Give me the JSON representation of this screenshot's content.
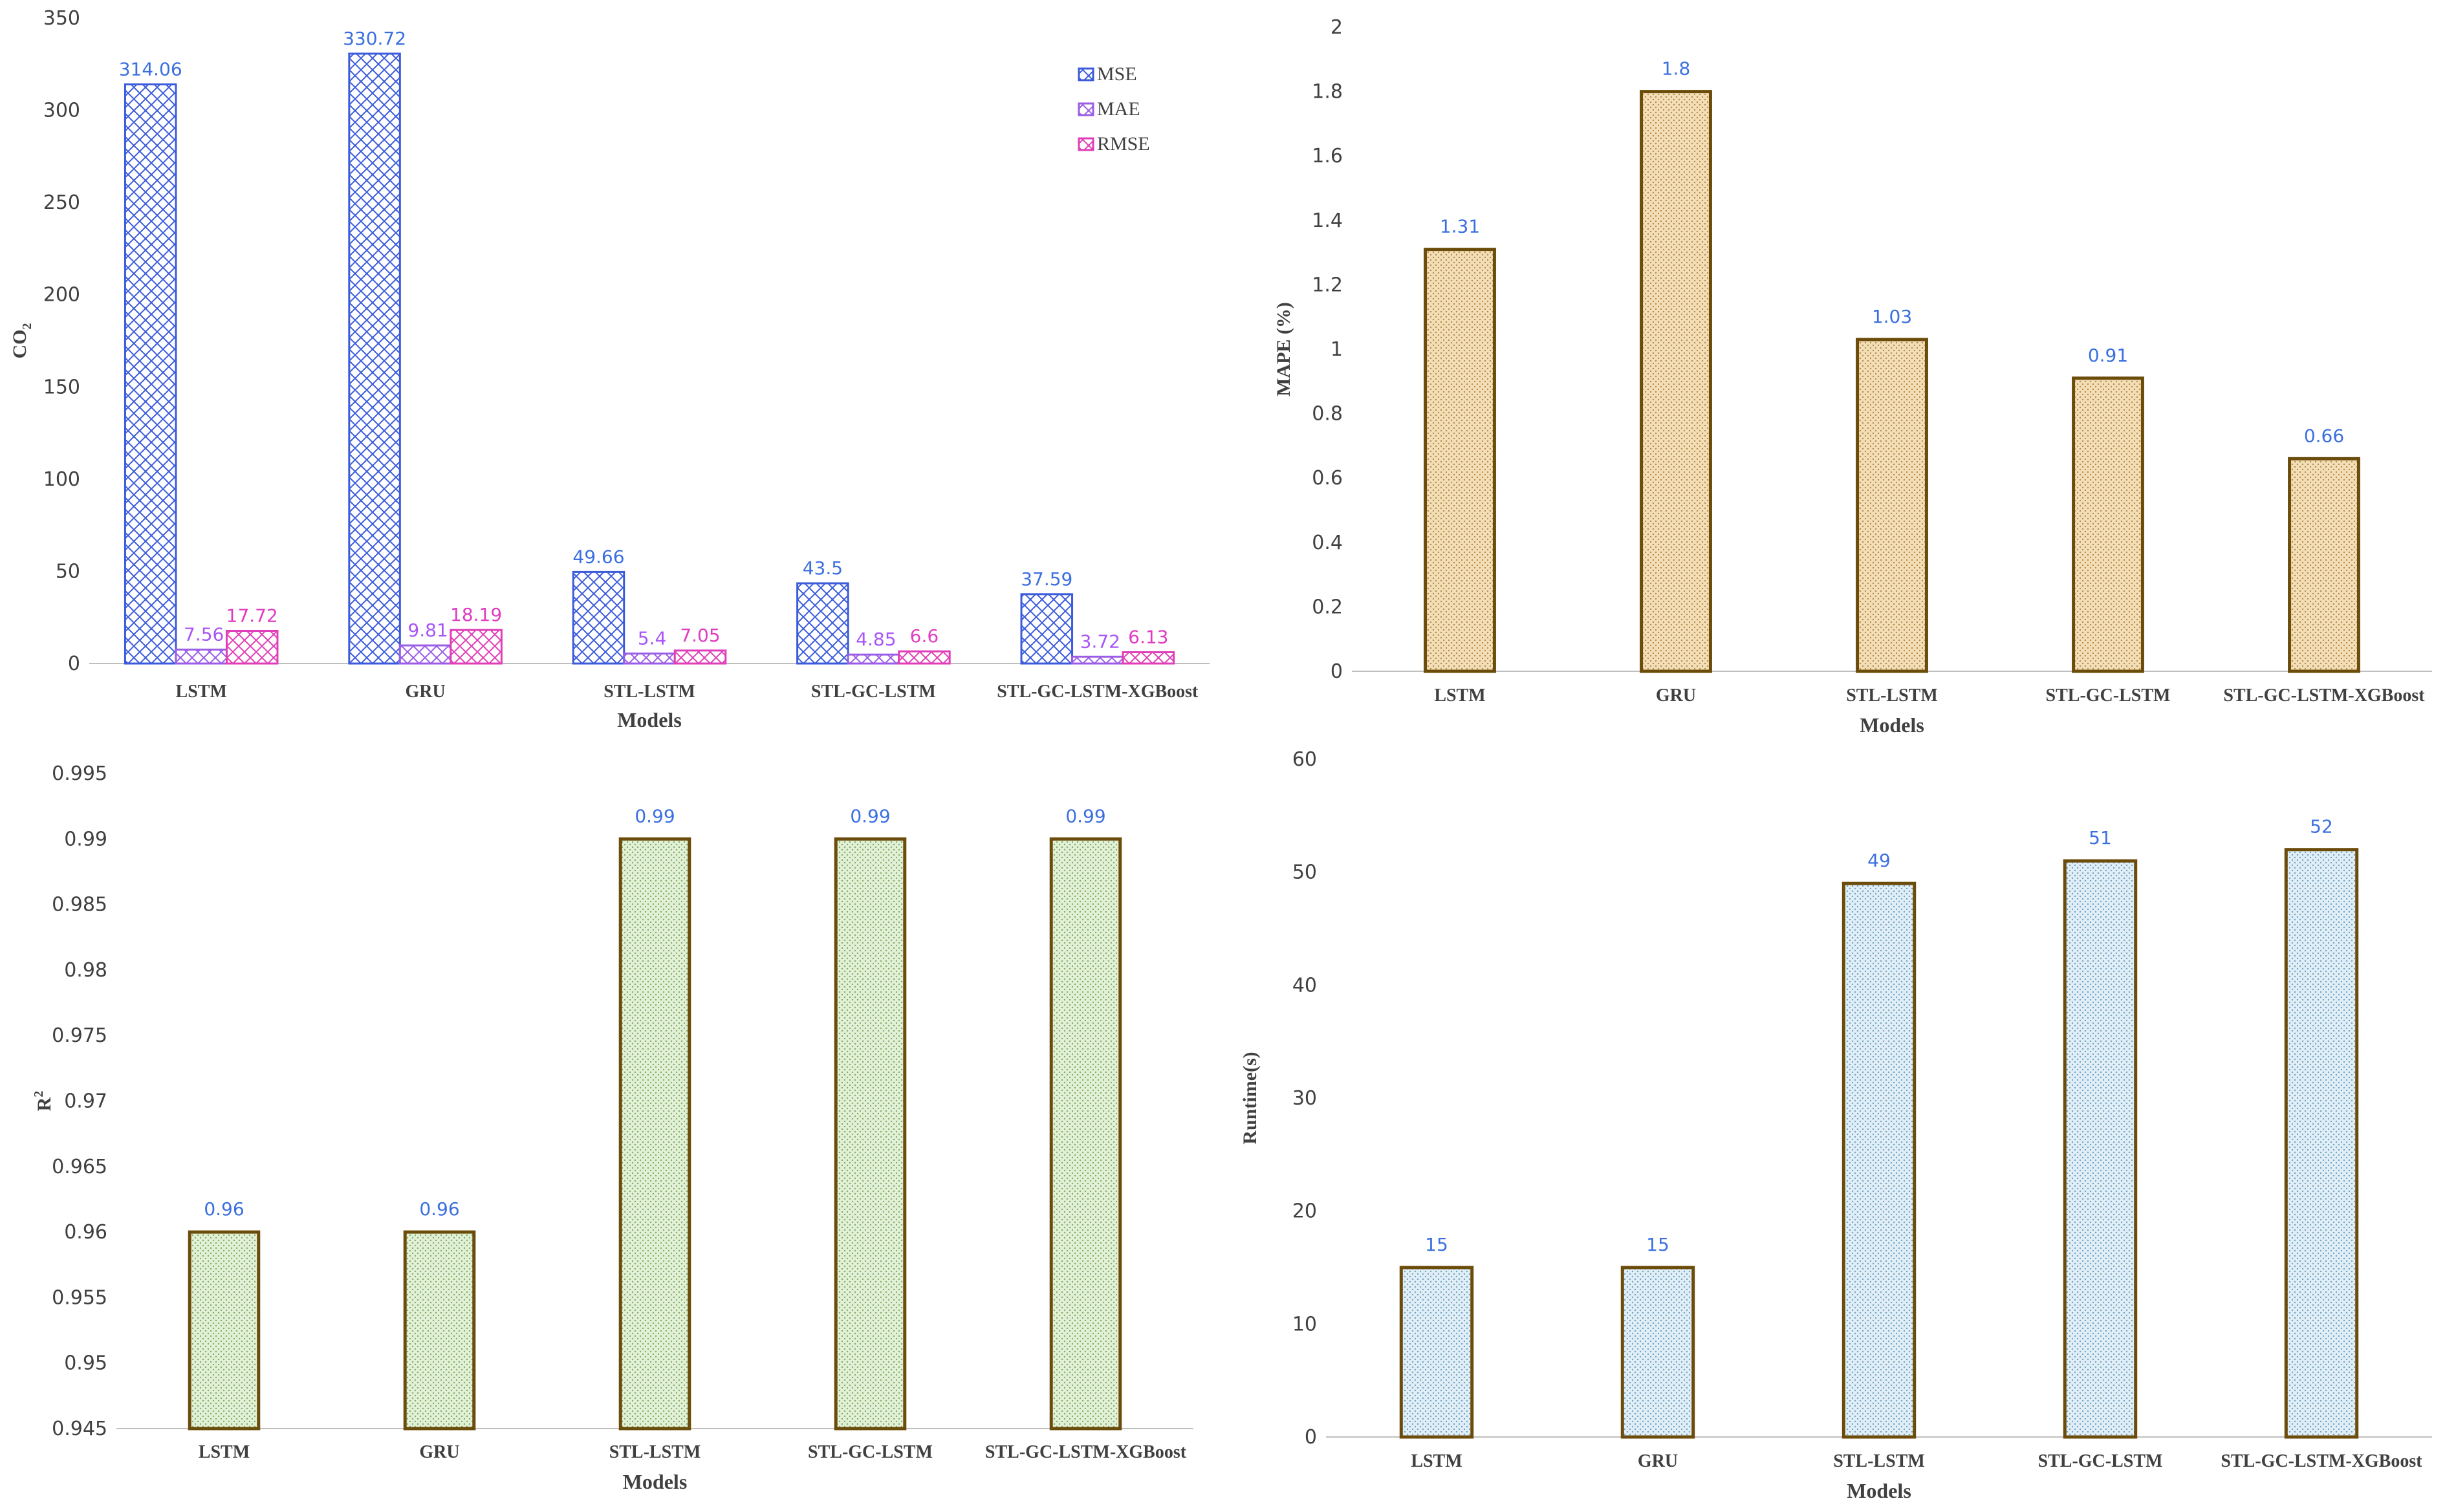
{
  "chart_data": [
    {
      "id": "errors",
      "type": "bar",
      "title": "",
      "xlabel": "Models",
      "ylabel": "CO",
      "ylabel_sub": "2",
      "categories": [
        "LSTM",
        "GRU",
        "STL-LSTM",
        "STL-GC-LSTM",
        "STL-GC-LSTM-XGBoost"
      ],
      "series": [
        {
          "name": "MSE",
          "values": [
            314.06,
            330.72,
            49.66,
            43.5,
            37.59
          ],
          "color": "#3b5bdb",
          "label_color": "#3b6fe0"
        },
        {
          "name": "MAE",
          "values": [
            7.56,
            9.81,
            5.4,
            4.85,
            3.72
          ],
          "color": "#9b5de5",
          "label_color": "#a855f7"
        },
        {
          "name": "RMSE",
          "values": [
            17.72,
            18.19,
            7.05,
            6.6,
            6.13
          ],
          "color": "#e03eb8",
          "label_color": "#e23bc1"
        }
      ],
      "ylim": [
        0,
        350
      ],
      "yticks": [
        0,
        50,
        100,
        150,
        200,
        250,
        300,
        350
      ],
      "legend": "top-right"
    },
    {
      "id": "mape",
      "type": "bar",
      "title": "",
      "xlabel": "Models",
      "ylabel": "MAPE (%)",
      "categories": [
        "LSTM",
        "GRU",
        "STL-LSTM",
        "STL-GC-LSTM",
        "STL-GC-LSTM-XGBoost"
      ],
      "values": [
        1.31,
        1.8,
        1.03,
        0.91,
        0.66
      ],
      "ylim": [
        0,
        2
      ],
      "yticks": [
        0,
        0.2,
        0.4,
        0.6,
        0.8,
        1,
        1.2,
        1.4,
        1.6,
        1.8,
        2
      ],
      "fill": "#f3dfb7",
      "dot": "#b8894a",
      "stroke": "#6b4c0b",
      "label_color": "#3b6fe0"
    },
    {
      "id": "r2",
      "type": "bar",
      "title": "",
      "xlabel": "Models",
      "ylabel": "R",
      "ylabel_sup": "2",
      "categories": [
        "LSTM",
        "GRU",
        "STL-LSTM",
        "STL-GC-LSTM",
        "STL-GC-LSTM-XGBoost"
      ],
      "values": [
        0.96,
        0.96,
        0.99,
        0.99,
        0.99
      ],
      "ylim": [
        0.945,
        0.995
      ],
      "yticks": [
        0.945,
        0.95,
        0.955,
        0.96,
        0.965,
        0.97,
        0.975,
        0.98,
        0.985,
        0.99,
        0.995
      ],
      "fill": "#e3f0d8",
      "dot": "#7fae62",
      "stroke": "#6b4c0b",
      "label_color": "#3b6fe0"
    },
    {
      "id": "runtime",
      "type": "bar",
      "title": "",
      "xlabel": "Models",
      "ylabel": "Runtime(s)",
      "categories": [
        "LSTM",
        "GRU",
        "STL-LSTM",
        "STL-GC-LSTM",
        "STL-GC-LSTM-XGBoost"
      ],
      "values": [
        15,
        15,
        49,
        51,
        52
      ],
      "ylim": [
        0,
        60
      ],
      "yticks": [
        0,
        10,
        20,
        30,
        40,
        50,
        60
      ],
      "fill": "#e1eef5",
      "dot": "#6fa3c8",
      "stroke": "#6b4c0b",
      "label_color": "#3b6fe0"
    }
  ]
}
